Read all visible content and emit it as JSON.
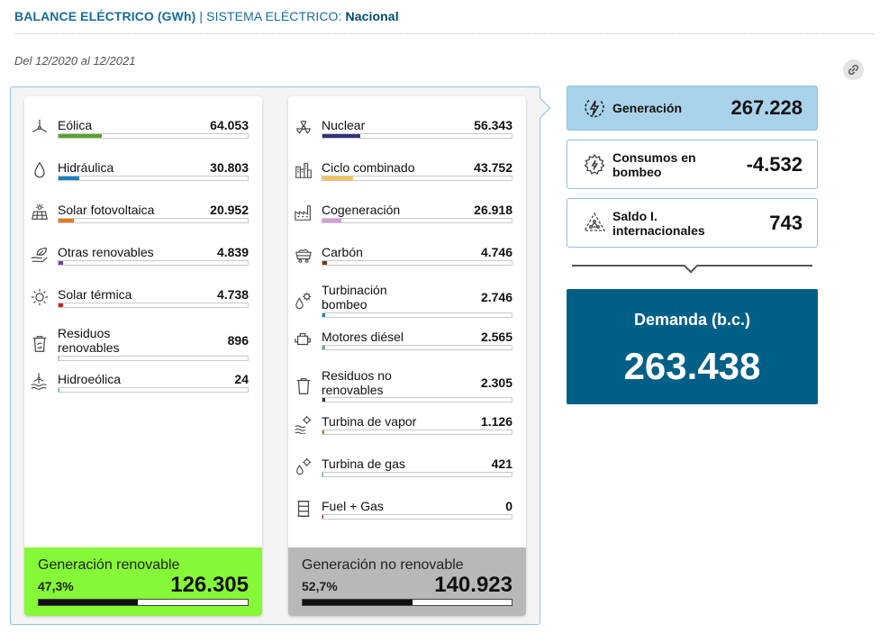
{
  "header": {
    "title": "BALANCE ELÉCTRICO (GWh)",
    "separator": "|",
    "system_label": "SISTEMA ELÉCTRICO:",
    "system_value": "Nacional"
  },
  "period": "Del 12/2020 al 12/2021",
  "renewable": {
    "items": [
      {
        "label": "Eólica",
        "value": "64.053",
        "icon": "wind-turbine-icon",
        "color": "#5aa12b",
        "fraction": 0.23
      },
      {
        "label": "Hidráulica",
        "value": "30.803",
        "icon": "water-drop-icon",
        "color": "#1e7fc0",
        "fraction": 0.11
      },
      {
        "label": "Solar fotovoltaica",
        "value": "20.952",
        "icon": "solar-panel-icon",
        "color": "#e07b17",
        "fraction": 0.08
      },
      {
        "label": "Otras renovables",
        "value": "4.839",
        "icon": "leaf-hand-icon",
        "color": "#7b3c9c",
        "fraction": 0.025
      },
      {
        "label": "Solar térmica",
        "value": "4.738",
        "icon": "sun-icon",
        "color": "#d81f1f",
        "fraction": 0.025
      },
      {
        "label": "Residuos renovables",
        "value": "896",
        "icon": "recycle-bin-icon",
        "color": "#bdbdbd",
        "fraction": 0.006
      },
      {
        "label": "Hidroeólica",
        "value": "24",
        "icon": "hydro-wind-icon",
        "color": "#3fd4e0",
        "fraction": 0.004
      }
    ],
    "summary": {
      "title": "Generación renovable",
      "percent": "47,3%",
      "value": "126.305",
      "fraction": 0.473
    }
  },
  "nonrenewable": {
    "items": [
      {
        "label": "Nuclear",
        "value": "56.343",
        "icon": "nuclear-icon",
        "color": "#33307a",
        "fraction": 0.2
      },
      {
        "label": "Ciclo combinado",
        "value": "43.752",
        "icon": "combined-cycle-icon",
        "color": "#f6c456",
        "fraction": 0.16
      },
      {
        "label": "Cogeneración",
        "value": "26.918",
        "icon": "cogeneration-icon",
        "color": "#d39fd6",
        "fraction": 0.1
      },
      {
        "label": "Carbón",
        "value": "4.746",
        "icon": "coal-cart-icon",
        "color": "#7a3a1a",
        "fraction": 0.025
      },
      {
        "label": "Turbinación bombeo",
        "value": "2.746",
        "icon": "pump-turbine-icon",
        "color": "#1e7fc0",
        "fraction": 0.015
      },
      {
        "label": "Motores diésel",
        "value": "2.565",
        "icon": "diesel-engine-icon",
        "color": "#6aa99a",
        "fraction": 0.015
      },
      {
        "label": "Residuos no renovables",
        "value": "2.305",
        "icon": "trash-icon",
        "color": "#333333",
        "fraction": 0.012
      },
      {
        "label": "Turbina de vapor",
        "value": "1.126",
        "icon": "steam-turbine-icon",
        "color": "#b8860b",
        "fraction": 0.008
      },
      {
        "label": "Turbina de gas",
        "value": "421",
        "icon": "gas-turbine-icon",
        "color": "#3fb0e0",
        "fraction": 0.006
      },
      {
        "label": "Fuel + Gas",
        "value": "0",
        "icon": "fuel-barrel-icon",
        "color": "#b5121b",
        "fraction": 0.004
      }
    ],
    "summary": {
      "title": "Generación no renovable",
      "percent": "52,7%",
      "value": "140.923",
      "fraction": 0.527
    }
  },
  "cards": {
    "generation": {
      "label": "Generación",
      "value": "267.228",
      "icon": "lightning-circle-icon"
    },
    "pumping": {
      "label": "Consumos en bombeo",
      "value": "-4.532",
      "icon": "gear-lightning-icon"
    },
    "balance": {
      "label": "Saldo I. internacionales",
      "value": "743",
      "icon": "triangle-network-icon"
    }
  },
  "demand": {
    "label": "Demanda (b.c.)",
    "value": "263.438"
  }
}
